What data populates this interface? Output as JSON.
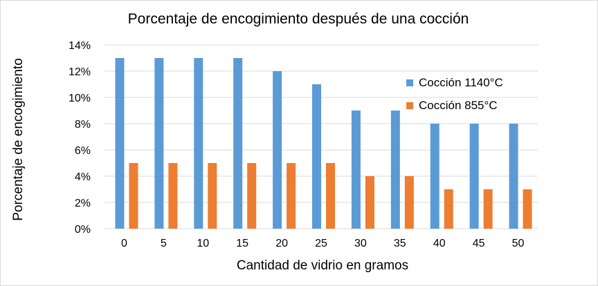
{
  "chart_data": {
    "type": "bar",
    "title": "Porcentaje de encogimiento después de una cocción",
    "xlabel": "Cantidad de vidrio en gramos",
    "ylabel": "Porcentaje de encogimiento",
    "categories": [
      "0",
      "5",
      "10",
      "15",
      "20",
      "25",
      "30",
      "35",
      "40",
      "45",
      "50"
    ],
    "series": [
      {
        "name": "Cocción 1140°C",
        "color": "#5b9bd5",
        "values": [
          13,
          13,
          13,
          13,
          12,
          11,
          9,
          9,
          8,
          8,
          8
        ]
      },
      {
        "name": "Cocción 855°C",
        "color": "#ed7d31",
        "values": [
          5,
          5,
          5,
          5,
          5,
          5,
          4,
          4,
          3,
          3,
          3
        ]
      }
    ],
    "ylim": [
      0,
      14
    ],
    "yticks": [
      "0%",
      "2%",
      "4%",
      "6%",
      "8%",
      "10%",
      "12%",
      "14%"
    ],
    "grid": true,
    "legend_position": "right"
  }
}
